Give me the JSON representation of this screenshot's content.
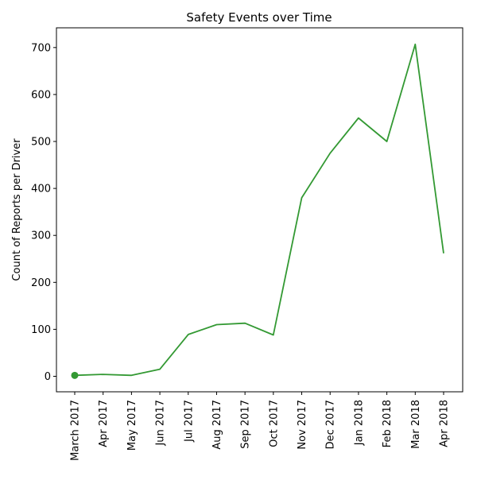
{
  "chart_data": {
    "type": "line",
    "title": "Safety Events over Time",
    "xlabel": "",
    "ylabel": "Count of Reports per Driver",
    "categories": [
      "March 2017",
      "Apr 2017",
      "May 2017",
      "Jun 2017",
      "Jul 2017",
      "Aug 2017",
      "Sep 2017",
      "Oct 2017",
      "Nov 2017",
      "Dec 2017",
      "Jan 2018",
      "Feb 2018",
      "Mar 2018",
      "Apr 2018"
    ],
    "series": [
      {
        "values": [
          2,
          4,
          2,
          15,
          89,
          110,
          113,
          88,
          380,
          475,
          550,
          500,
          707,
          262
        ],
        "color": "#339933"
      }
    ],
    "marker": {
      "index": 0,
      "series": 0
    },
    "ylim": [
      -33,
      742
    ],
    "yticks": [
      0,
      100,
      200,
      300,
      400,
      500,
      600,
      700
    ],
    "grid": false,
    "legend": "none"
  }
}
